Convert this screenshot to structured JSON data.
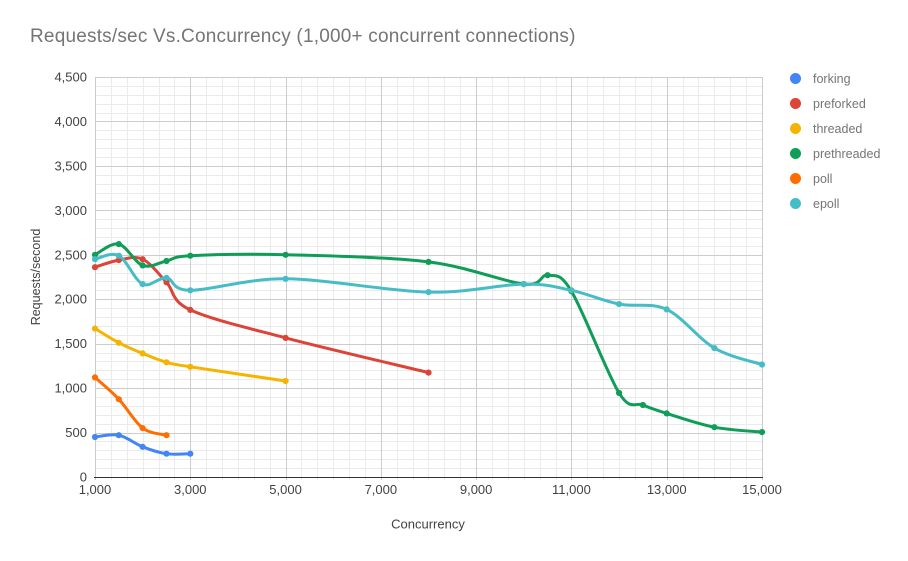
{
  "chart_data": {
    "type": "line",
    "title": "Requests/sec Vs.Concurrency (1,000+ concurrent connections)",
    "xlabel": "Concurrency",
    "ylabel": "Requests/second",
    "xlim": [
      1000,
      15000
    ],
    "ylim": [
      0,
      4500
    ],
    "grid": true,
    "smooth_lines": true,
    "point_markers": true,
    "legend_position": "right",
    "x_ticks": [
      {
        "v": 1000,
        "label": "1,000"
      },
      {
        "v": 3000,
        "label": "3,000"
      },
      {
        "v": 5000,
        "label": "5,000"
      },
      {
        "v": 7000,
        "label": "7,000"
      },
      {
        "v": 9000,
        "label": "9,000"
      },
      {
        "v": 11000,
        "label": "11,000"
      },
      {
        "v": 13000,
        "label": "13,000"
      },
      {
        "v": 15000,
        "label": "15,000"
      }
    ],
    "y_ticks": [
      {
        "v": 0,
        "label": "0"
      },
      {
        "v": 500,
        "label": "500"
      },
      {
        "v": 1000,
        "label": "1,000"
      },
      {
        "v": 1500,
        "label": "1,500"
      },
      {
        "v": 2000,
        "label": "2,000"
      },
      {
        "v": 2500,
        "label": "2,500"
      },
      {
        "v": 3000,
        "label": "3,000"
      },
      {
        "v": 3500,
        "label": "3,500"
      },
      {
        "v": 4000,
        "label": "4,000"
      },
      {
        "v": 4500,
        "label": "4,500"
      }
    ],
    "grid_minor_step_x": 333.3333,
    "grid_minor_step_y": 100,
    "series": [
      {
        "name": "forking",
        "color": "#4285F4",
        "points": [
          [
            1000,
            450
          ],
          [
            1500,
            470
          ],
          [
            2000,
            340
          ],
          [
            2500,
            262
          ],
          [
            3000,
            262
          ]
        ]
      },
      {
        "name": "preforked",
        "color": "#DB4437",
        "points": [
          [
            1000,
            2360
          ],
          [
            1500,
            2440
          ],
          [
            2000,
            2450
          ],
          [
            2500,
            2190
          ],
          [
            3000,
            1880
          ],
          [
            5000,
            1565
          ],
          [
            8000,
            1175
          ]
        ]
      },
      {
        "name": "threaded",
        "color": "#F4B400",
        "points": [
          [
            1000,
            1670
          ],
          [
            1500,
            1510
          ],
          [
            2000,
            1390
          ],
          [
            2500,
            1290
          ],
          [
            3000,
            1240
          ],
          [
            5000,
            1080
          ]
        ]
      },
      {
        "name": "prethreaded",
        "color": "#0F9D58",
        "points": [
          [
            1000,
            2500
          ],
          [
            1500,
            2620
          ],
          [
            2000,
            2380
          ],
          [
            2500,
            2430
          ],
          [
            3000,
            2490
          ],
          [
            5000,
            2500
          ],
          [
            8000,
            2420
          ],
          [
            10000,
            2170
          ],
          [
            10500,
            2270
          ],
          [
            11000,
            2090
          ],
          [
            12000,
            945
          ],
          [
            12500,
            810
          ],
          [
            13000,
            715
          ],
          [
            14000,
            560
          ],
          [
            15000,
            505
          ]
        ]
      },
      {
        "name": "poll",
        "color": "#FF6D01",
        "points": [
          [
            1000,
            1120
          ],
          [
            1500,
            875
          ],
          [
            2000,
            550
          ],
          [
            2500,
            470
          ]
        ]
      },
      {
        "name": "epoll",
        "color": "#46BDC6",
        "points": [
          [
            1000,
            2450
          ],
          [
            1500,
            2490
          ],
          [
            2000,
            2170
          ],
          [
            2500,
            2240
          ],
          [
            3000,
            2100
          ],
          [
            5000,
            2230
          ],
          [
            8000,
            2080
          ],
          [
            10000,
            2170
          ],
          [
            11000,
            2100
          ],
          [
            12000,
            1945
          ],
          [
            13000,
            1885
          ],
          [
            14000,
            1450
          ],
          [
            15000,
            1265
          ]
        ]
      }
    ],
    "style_colors": {
      "title_text": "#757575",
      "tick_text": "#424242",
      "axis_line": "#333333",
      "grid_major": "#cccccc",
      "grid_minor": "#ebebeb",
      "legend_text": "#757575",
      "background": "#ffffff"
    }
  }
}
